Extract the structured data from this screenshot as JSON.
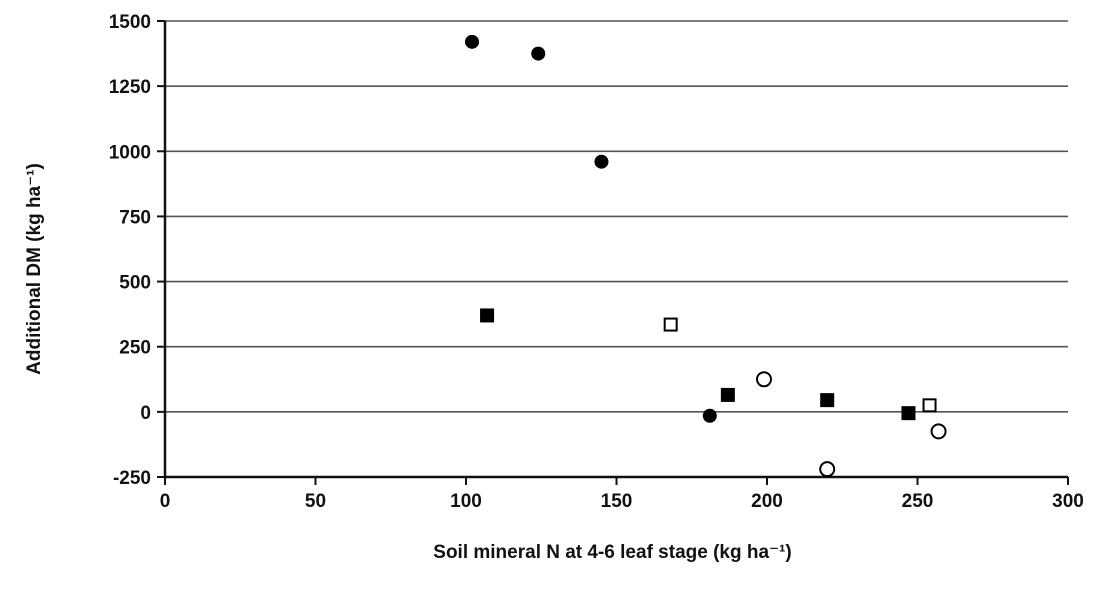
{
  "chart_data": {
    "type": "scatter",
    "title": "",
    "xlabel": "Soil mineral N at 4-6 leaf stage (kg ha⁻¹)",
    "ylabel": "Additional DM (kg ha⁻¹)",
    "xlim": [
      0,
      300
    ],
    "ylim": [
      -250,
      1500
    ],
    "xticks": [
      0,
      50,
      100,
      150,
      200,
      250,
      300
    ],
    "yticks": [
      -250,
      0,
      250,
      500,
      750,
      1000,
      1250,
      1500
    ],
    "grid": true,
    "legend": "none",
    "series": [
      {
        "marker": "filled-circle",
        "points": [
          {
            "x": 102,
            "y": 1420
          },
          {
            "x": 124,
            "y": 1375
          },
          {
            "x": 145,
            "y": 960
          },
          {
            "x": 181,
            "y": -15
          }
        ]
      },
      {
        "marker": "filled-square",
        "points": [
          {
            "x": 107,
            "y": 370
          },
          {
            "x": 187,
            "y": 65
          },
          {
            "x": 220,
            "y": 45
          },
          {
            "x": 247,
            "y": -5
          }
        ]
      },
      {
        "marker": "open-square",
        "points": [
          {
            "x": 168,
            "y": 335
          },
          {
            "x": 254,
            "y": 25
          }
        ]
      },
      {
        "marker": "open-circle",
        "points": [
          {
            "x": 199,
            "y": 125
          },
          {
            "x": 220,
            "y": -220
          },
          {
            "x": 257,
            "y": -75
          }
        ]
      }
    ]
  }
}
